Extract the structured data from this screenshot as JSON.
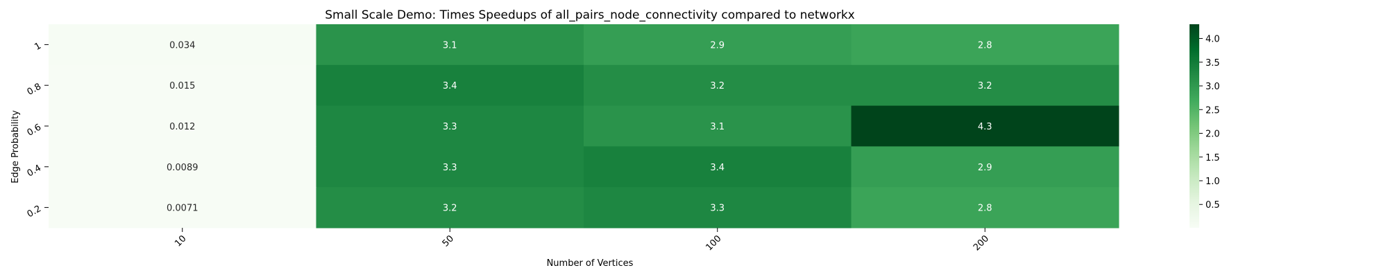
{
  "chart_data": {
    "type": "heatmap",
    "title": "Small Scale Demo: Times Speedups of all_pairs_node_connectivity compared to networkx",
    "xlabel": "Number of Vertices",
    "ylabel": "Edge Probability",
    "x_categories": [
      "10",
      "50",
      "100",
      "200"
    ],
    "y_categories": [
      "1",
      "0.8",
      "0.6",
      "0.4",
      "0.2"
    ],
    "values": [
      [
        0.034,
        3.1,
        2.9,
        2.8
      ],
      [
        0.015,
        3.4,
        3.2,
        3.2
      ],
      [
        0.012,
        3.3,
        3.1,
        4.3
      ],
      [
        0.0089,
        3.3,
        3.4,
        2.9
      ],
      [
        0.0071,
        3.2,
        3.3,
        2.8
      ]
    ],
    "value_labels": [
      [
        "0.034",
        "3.1",
        "2.9",
        "2.8"
      ],
      [
        "0.015",
        "3.4",
        "3.2",
        "3.2"
      ],
      [
        "0.012",
        "3.3",
        "3.1",
        "4.3"
      ],
      [
        "0.0089",
        "3.3",
        "3.4",
        "2.9"
      ],
      [
        "0.0071",
        "3.2",
        "3.3",
        "2.8"
      ]
    ],
    "colorbar": {
      "min": 0.0071,
      "max": 4.3,
      "ticks": [
        0.5,
        1.0,
        1.5,
        2.0,
        2.5,
        3.0,
        3.5,
        4.0
      ],
      "tick_labels": [
        "0.5",
        "1.0",
        "1.5",
        "2.0",
        "2.5",
        "3.0",
        "3.5",
        "4.0"
      ]
    },
    "colormap": "Greens",
    "colormap_stops": [
      "#f7fcf5",
      "#e5f5e0",
      "#c7e9c0",
      "#a1d99b",
      "#74c476",
      "#41ab5d",
      "#238b45",
      "#006d2c",
      "#00441b"
    ],
    "light_text_color": "#ffffff",
    "dark_text_color": "#262626"
  }
}
